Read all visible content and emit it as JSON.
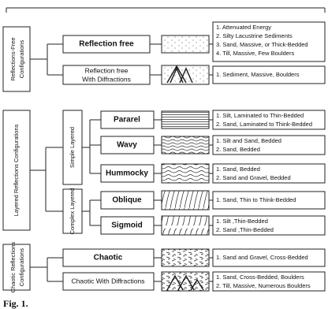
{
  "groups": [
    {
      "label_lines": [
        "Reflections-Free",
        "Configurations"
      ],
      "items": [
        {
          "label": "Reflection free",
          "description": [
            "1. Attenuated Energy",
            "2. Silty Lacustrine Sediments",
            "3. Sand, Massive, or Thick-Bedded",
            "4. Till, Massive, Few Boulders"
          ]
        },
        {
          "label_lines": [
            "Reflection free",
            "With Diffractions"
          ],
          "description": [
            "1. Sediment, Massive, Boulders"
          ]
        }
      ]
    },
    {
      "label": "Layered Reflections Configurations",
      "subgroups": [
        {
          "label": "Simple Layered",
          "items": [
            {
              "label": "Pararel",
              "description": [
                "1. Silt, Laminated to Thin-Bedded",
                "2. Sand, Laminated to Think-Bedded"
              ]
            },
            {
              "label": "Wavy",
              "description": [
                "1. Silt and Sand, Bedded",
                "2. Sand, Bedded"
              ]
            },
            {
              "label": "Hummocky",
              "description": [
                "1. Sand, Bedded",
                "2. Sand and Gravel, Bedded"
              ]
            }
          ]
        },
        {
          "label": "Complex Layered",
          "items": [
            {
              "label": "Oblique",
              "description": [
                "1. Sand, Thin to Think-Bedded"
              ]
            },
            {
              "label": "Sigmoid",
              "description": [
                "1. Silt ,Thin-Bedded",
                "2. Sand ,Thin-Bedded"
              ]
            }
          ]
        }
      ]
    },
    {
      "label_lines": [
        "Chaotic Reflections",
        "Configurations"
      ],
      "items": [
        {
          "label": "Chaotic",
          "description": [
            "1. Sand and Gravel, Cross-Bedded"
          ]
        },
        {
          "label": "Chaotic With Diffractions",
          "description": [
            "1. Sand, Cross-Bedded, Boulders",
            "2. Till, Massive, Numerous Boulders"
          ]
        }
      ]
    }
  ],
  "caption": "Fig. 1."
}
